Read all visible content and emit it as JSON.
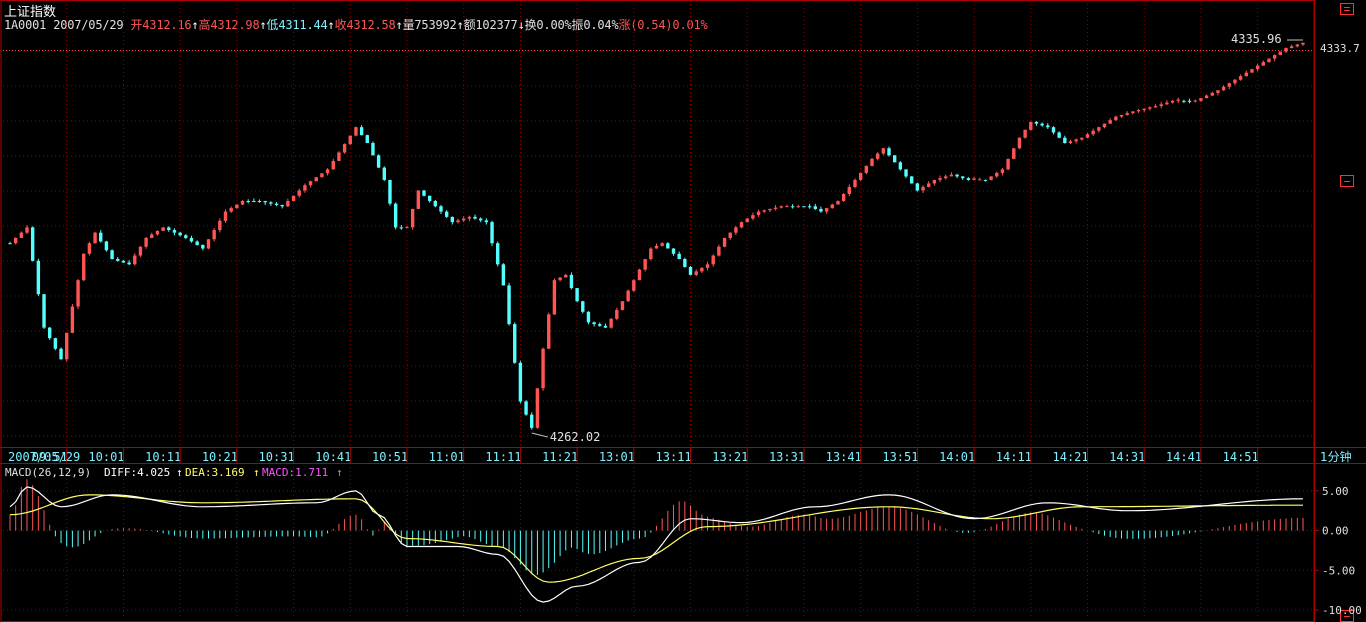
{
  "header": {
    "title": "上证指数",
    "code": "1A0001",
    "date": "2007/05/29",
    "fields": [
      {
        "label": "开",
        "value": "4312.16",
        "arrow": "↑",
        "color": "#ff5555"
      },
      {
        "label": "高",
        "value": "4312.98",
        "arrow": "↑",
        "color": "#ff5555"
      },
      {
        "label": "低",
        "value": "4311.44",
        "arrow": "↑",
        "color": "#7ff0ff"
      },
      {
        "label": "收",
        "value": "4312.58",
        "arrow": "↑",
        "color": "#ff5555"
      },
      {
        "label": "量",
        "value": "753992",
        "arrow": "↑",
        "color": "#e0e0e0"
      },
      {
        "label": "额",
        "value": "102377",
        "arrow": "↓",
        "color": "#e0e0e0"
      },
      {
        "label": "换",
        "value": "0.00%",
        "arrow": "",
        "color": "#e0e0e0"
      },
      {
        "label": "振",
        "value": "0.04%",
        "arrow": "",
        "color": "#e0e0e0"
      },
      {
        "label": "涨",
        "value": "(0.54)0.01%",
        "arrow": "",
        "color": "#ff5555"
      }
    ]
  },
  "price_panel": {
    "right_axis_label": "4333.7",
    "high_label": "4335.96",
    "low_label": "4262.02"
  },
  "time_axis": {
    "date": "2007/05/29",
    "ticks": [
      "09:51",
      "10:01",
      "10:11",
      "10:21",
      "10:31",
      "10:41",
      "10:51",
      "11:01",
      "11:11",
      "11:21",
      "13:01",
      "13:11",
      "13:21",
      "13:31",
      "13:41",
      "13:51",
      "14:01",
      "14:11",
      "14:21",
      "14:31",
      "14:41",
      "14:51"
    ],
    "period": "1分钟"
  },
  "macd": {
    "name": "MACD(26,12,9)",
    "diff": "DIFF:4.025",
    "diff_arrow": "↑",
    "dea": "DEA:3.169",
    "dea_arrow": "↑",
    "macd": "MACD:1.711",
    "macd_arrow": "↑",
    "axis_labels": [
      "5.00",
      "0.00",
      "-5.00",
      "-10.00"
    ]
  },
  "colors": {
    "up": "#ff5555",
    "down": "#54ffff",
    "grid": "#8b0000",
    "frame": "#b00000",
    "diff_line": "#ffffff",
    "dea_line": "#ffff66"
  },
  "chart_data": {
    "type": "candlestick",
    "x_first": "09:41",
    "x_last": "14:59",
    "ylim": [
      4262.02,
      4335.96
    ],
    "close_path": [
      {
        "t": "09:41",
        "v": 4298
      },
      {
        "t": "09:44",
        "v": 4301
      },
      {
        "t": "09:47",
        "v": 4282
      },
      {
        "t": "09:50",
        "v": 4276
      },
      {
        "t": "09:54",
        "v": 4296
      },
      {
        "t": "09:56",
        "v": 4300
      },
      {
        "t": "09:59",
        "v": 4295
      },
      {
        "t": "10:02",
        "v": 4294
      },
      {
        "t": "10:05",
        "v": 4299
      },
      {
        "t": "10:08",
        "v": 4301
      },
      {
        "t": "10:12",
        "v": 4299
      },
      {
        "t": "10:15",
        "v": 4297
      },
      {
        "t": "10:19",
        "v": 4304
      },
      {
        "t": "10:22",
        "v": 4306
      },
      {
        "t": "10:25",
        "v": 4306
      },
      {
        "t": "10:29",
        "v": 4305
      },
      {
        "t": "10:33",
        "v": 4309
      },
      {
        "t": "10:37",
        "v": 4312
      },
      {
        "t": "10:42",
        "v": 4320
      },
      {
        "t": "10:44",
        "v": 4317
      },
      {
        "t": "10:47",
        "v": 4310
      },
      {
        "t": "10:49",
        "v": 4301
      },
      {
        "t": "10:51",
        "v": 4301
      },
      {
        "t": "10:53",
        "v": 4308
      },
      {
        "t": "10:56",
        "v": 4305
      },
      {
        "t": "10:59",
        "v": 4302
      },
      {
        "t": "11:02",
        "v": 4303
      },
      {
        "t": "11:05",
        "v": 4302
      },
      {
        "t": "11:08",
        "v": 4290
      },
      {
        "t": "11:11",
        "v": 4268
      },
      {
        "t": "11:13",
        "v": 4263
      },
      {
        "t": "11:15",
        "v": 4278
      },
      {
        "t": "11:17",
        "v": 4291
      },
      {
        "t": "11:19",
        "v": 4292
      },
      {
        "t": "11:21",
        "v": 4287
      },
      {
        "t": "11:23",
        "v": 4283
      },
      {
        "t": "11:26",
        "v": 4282
      },
      {
        "t": "11:29",
        "v": 4287
      },
      {
        "t": "13:02",
        "v": 4293
      },
      {
        "t": "13:04",
        "v": 4297
      },
      {
        "t": "13:06",
        "v": 4298
      },
      {
        "t": "13:09",
        "v": 4295
      },
      {
        "t": "13:11",
        "v": 4292
      },
      {
        "t": "13:14",
        "v": 4294
      },
      {
        "t": "13:17",
        "v": 4299
      },
      {
        "t": "13:20",
        "v": 4302
      },
      {
        "t": "13:23",
        "v": 4304
      },
      {
        "t": "13:27",
        "v": 4305
      },
      {
        "t": "13:32",
        "v": 4305
      },
      {
        "t": "13:34",
        "v": 4304
      },
      {
        "t": "13:37",
        "v": 4306
      },
      {
        "t": "13:40",
        "v": 4310
      },
      {
        "t": "13:43",
        "v": 4314
      },
      {
        "t": "13:45",
        "v": 4316
      },
      {
        "t": "13:48",
        "v": 4312
      },
      {
        "t": "13:51",
        "v": 4308
      },
      {
        "t": "13:54",
        "v": 4310
      },
      {
        "t": "13:57",
        "v": 4311
      },
      {
        "t": "14:00",
        "v": 4310
      },
      {
        "t": "14:03",
        "v": 4310
      },
      {
        "t": "14:06",
        "v": 4312
      },
      {
        "t": "14:09",
        "v": 4318
      },
      {
        "t": "14:11",
        "v": 4321
      },
      {
        "t": "14:14",
        "v": 4320
      },
      {
        "t": "14:17",
        "v": 4317
      },
      {
        "t": "14:20",
        "v": 4318
      },
      {
        "t": "14:23",
        "v": 4320
      },
      {
        "t": "14:26",
        "v": 4322
      },
      {
        "t": "14:29",
        "v": 4323
      },
      {
        "t": "14:33",
        "v": 4324
      },
      {
        "t": "14:36",
        "v": 4325
      },
      {
        "t": "14:40",
        "v": 4325
      },
      {
        "t": "14:44",
        "v": 4327
      },
      {
        "t": "14:47",
        "v": 4329
      },
      {
        "t": "14:50",
        "v": 4331
      },
      {
        "t": "14:53",
        "v": 4333
      },
      {
        "t": "14:56",
        "v": 4335
      },
      {
        "t": "14:59",
        "v": 4336
      }
    ],
    "macd": {
      "ylim": [
        -10,
        7
      ],
      "diff": [
        {
          "t": "09:41",
          "v": 3
        },
        {
          "t": "09:44",
          "v": 5.5
        },
        {
          "t": "09:50",
          "v": 3
        },
        {
          "t": "09:59",
          "v": 4.5
        },
        {
          "t": "10:15",
          "v": 3
        },
        {
          "t": "10:35",
          "v": 3.5
        },
        {
          "t": "10:42",
          "v": 5
        },
        {
          "t": "10:46",
          "v": 2
        },
        {
          "t": "10:51",
          "v": -2
        },
        {
          "t": "11:00",
          "v": -2
        },
        {
          "t": "11:07",
          "v": -3
        },
        {
          "t": "11:15",
          "v": -9
        },
        {
          "t": "11:21",
          "v": -7
        },
        {
          "t": "13:02",
          "v": -4
        },
        {
          "t": "13:11",
          "v": 1.5
        },
        {
          "t": "13:20",
          "v": 1
        },
        {
          "t": "13:33",
          "v": 3
        },
        {
          "t": "13:46",
          "v": 4.5
        },
        {
          "t": "14:01",
          "v": 1.5
        },
        {
          "t": "14:14",
          "v": 3.5
        },
        {
          "t": "14:28",
          "v": 2.5
        },
        {
          "t": "14:59",
          "v": 4
        }
      ],
      "dea": [
        {
          "t": "09:41",
          "v": 2
        },
        {
          "t": "09:55",
          "v": 4.5
        },
        {
          "t": "10:15",
          "v": 3.5
        },
        {
          "t": "10:42",
          "v": 4
        },
        {
          "t": "10:51",
          "v": -1
        },
        {
          "t": "11:07",
          "v": -2
        },
        {
          "t": "11:16",
          "v": -6.5
        },
        {
          "t": "13:02",
          "v": -3.5
        },
        {
          "t": "13:14",
          "v": 0.5
        },
        {
          "t": "13:46",
          "v": 3
        },
        {
          "t": "14:04",
          "v": 1.5
        },
        {
          "t": "14:20",
          "v": 3
        },
        {
          "t": "14:59",
          "v": 3.2
        }
      ]
    }
  }
}
